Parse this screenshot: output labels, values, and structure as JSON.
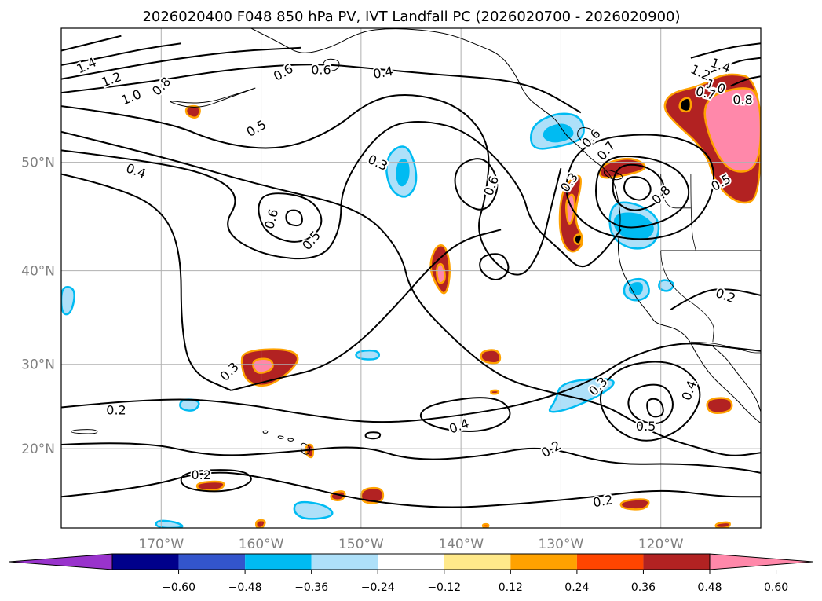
{
  "chart_data": {
    "type": "contour-map",
    "title": "2026020400 F048 850 hPa PV, IVT Landfall PC (2026020700 - 2026020900)",
    "projection": "Mercator",
    "lon_range": [
      -180,
      -110
    ],
    "lat_range": [
      10,
      60
    ],
    "lon_ticks": [
      -170,
      -160,
      -150,
      -140,
      -130,
      -120
    ],
    "lon_tick_labels": [
      "170°W",
      "160°W",
      "150°W",
      "140°W",
      "130°W",
      "120°W"
    ],
    "lat_ticks": [
      20,
      30,
      40,
      50
    ],
    "lat_tick_labels": [
      "20°N",
      "30°N",
      "40°N",
      "50°N"
    ],
    "grid": true,
    "contour_field": "850 hPa PV",
    "contour_levels": [
      0.2,
      0.3,
      0.4,
      0.5,
      0.6,
      0.7,
      0.8,
      1.0,
      1.2,
      1.4
    ],
    "contour_labels": [
      {
        "text": "1.4",
        "lon": -177.5,
        "lat": 57.5,
        "rot": -25
      },
      {
        "text": "1.2",
        "lon": -175.0,
        "lat": 56.5,
        "rot": -20
      },
      {
        "text": "1.0",
        "lon": -173.0,
        "lat": 55.2,
        "rot": -22
      },
      {
        "text": "0.8",
        "lon": -170.0,
        "lat": 56.0,
        "rot": -45
      },
      {
        "text": "0.6",
        "lon": -157.8,
        "lat": 57.0,
        "rot": -30
      },
      {
        "text": "0.6",
        "lon": -154.0,
        "lat": 57.2,
        "rot": 0
      },
      {
        "text": "0.4",
        "lon": -147.8,
        "lat": 57.0,
        "rot": -10
      },
      {
        "text": "0.5",
        "lon": -160.5,
        "lat": 52.8,
        "rot": -30
      },
      {
        "text": "0.4",
        "lon": -172.5,
        "lat": 49.3,
        "rot": 20
      },
      {
        "text": "0.3",
        "lon": -148.3,
        "lat": 50.0,
        "rot": 25
      },
      {
        "text": "0.6",
        "lon": -159.0,
        "lat": 45.0,
        "rot": -75
      },
      {
        "text": "0.5",
        "lon": -155.0,
        "lat": 43.0,
        "rot": -50
      },
      {
        "text": "0.6",
        "lon": -137.0,
        "lat": 48.0,
        "rot": -70
      },
      {
        "text": "0.6",
        "lon": -127.0,
        "lat": 52.0,
        "rot": -45
      },
      {
        "text": "0.3",
        "lon": -129.2,
        "lat": 48.3,
        "rot": -55
      },
      {
        "text": "0.7",
        "lon": -125.5,
        "lat": 51.0,
        "rot": -50
      },
      {
        "text": "0.8",
        "lon": -120.0,
        "lat": 47.2,
        "rot": -45
      },
      {
        "text": "1.4",
        "lon": -114.0,
        "lat": 57.5,
        "rot": 20
      },
      {
        "text": "1.2",
        "lon": -116.0,
        "lat": 57.0,
        "rot": 25
      },
      {
        "text": "1.0",
        "lon": -114.5,
        "lat": 56.0,
        "rot": 20
      },
      {
        "text": "0.7",
        "lon": -115.5,
        "lat": 55.5,
        "rot": 15
      },
      {
        "text": "0.8",
        "lon": -111.8,
        "lat": 55.0,
        "rot": 0
      },
      {
        "text": "0.5",
        "lon": -114.0,
        "lat": 48.3,
        "rot": -30
      },
      {
        "text": "0.2",
        "lon": -113.5,
        "lat": 37.5,
        "rot": 20
      },
      {
        "text": "0.3",
        "lon": -163.2,
        "lat": 29.2,
        "rot": -45
      },
      {
        "text": "0.2",
        "lon": -174.5,
        "lat": 24.7,
        "rot": 0
      },
      {
        "text": "0.4",
        "lon": -140.2,
        "lat": 22.8,
        "rot": -20
      },
      {
        "text": "0.3",
        "lon": -126.3,
        "lat": 27.5,
        "rot": -45
      },
      {
        "text": "0.4",
        "lon": -117.2,
        "lat": 27.0,
        "rot": -70
      },
      {
        "text": "0.5",
        "lon": -121.5,
        "lat": 22.8,
        "rot": 0
      },
      {
        "text": "0.2",
        "lon": -131.0,
        "lat": 20.0,
        "rot": -30
      },
      {
        "text": "0.2",
        "lon": -166.0,
        "lat": 16.8,
        "rot": 0
      },
      {
        "text": "0.2",
        "lon": -125.8,
        "lat": 13.5,
        "rot": -10
      }
    ],
    "filled_field": "IVT Landfall PC",
    "colorbar": {
      "extend": "both",
      "boundaries": [
        -0.72,
        -0.6,
        -0.48,
        -0.36,
        -0.24,
        -0.12,
        0.12,
        0.24,
        0.36,
        0.48,
        0.6,
        0.72
      ],
      "tick_values": [
        -0.6,
        -0.48,
        -0.36,
        -0.24,
        -0.12,
        0.12,
        0.24,
        0.36,
        0.48,
        0.6
      ],
      "tick_labels": [
        "−0.60",
        "−0.48",
        "−0.36",
        "−0.24",
        "−0.12",
        "0.12",
        "0.24",
        "0.36",
        "0.48",
        "0.60"
      ],
      "colors": [
        "#9933cc",
        "#00008b",
        "#3355cc",
        "#00bbf2",
        "#aee0f9",
        "#ffffff",
        "#ffe98a",
        "#ffa200",
        "#ff4500",
        "#b22222",
        "#ff88aa"
      ]
    },
    "filled_regions": [
      {
        "level": -0.36,
        "points": [
          [
            -147,
            51
          ],
          [
            -145.5,
            51.5
          ],
          [
            -144.6,
            50
          ],
          [
            -144.4,
            48
          ],
          [
            -145.5,
            46.8
          ],
          [
            -147,
            47.5
          ],
          [
            -147.6,
            49.5
          ]
        ]
      },
      {
        "level": -0.48,
        "points": [
          [
            -146.2,
            50.2
          ],
          [
            -145.3,
            50.2
          ],
          [
            -145.2,
            48.6
          ],
          [
            -146,
            47.8
          ],
          [
            -146.5,
            48.8
          ]
        ]
      },
      {
        "level": -0.36,
        "points": [
          [
            -133,
            53
          ],
          [
            -130.5,
            54
          ],
          [
            -128,
            53.8
          ],
          [
            -127.5,
            52
          ],
          [
            -130,
            51.3
          ],
          [
            -133,
            51
          ]
        ]
      },
      {
        "level": -0.48,
        "points": [
          [
            -131.5,
            52.8
          ],
          [
            -129.5,
            53.2
          ],
          [
            -128.5,
            52.2
          ],
          [
            -130.5,
            51.6
          ],
          [
            -131.8,
            52
          ]
        ]
      },
      {
        "level": -0.36,
        "points": [
          [
            -125,
            46.5
          ],
          [
            -122.5,
            46.5
          ],
          [
            -120,
            45
          ],
          [
            -120.5,
            42.5
          ],
          [
            -123,
            42
          ],
          [
            -125.2,
            43.5
          ]
        ]
      },
      {
        "level": -0.48,
        "points": [
          [
            -124.5,
            45.5
          ],
          [
            -122,
            45.5
          ],
          [
            -120.5,
            44.2
          ],
          [
            -121.5,
            43
          ],
          [
            -123.5,
            43.2
          ],
          [
            -124.7,
            44.2
          ]
        ]
      },
      {
        "level": -0.36,
        "points": [
          [
            -123.5,
            39
          ],
          [
            -121.5,
            39.3
          ],
          [
            -121,
            37.5
          ],
          [
            -122.5,
            36.8
          ],
          [
            -123.8,
            37.5
          ]
        ]
      },
      {
        "level": -0.48,
        "points": [
          [
            -123,
            38.7
          ],
          [
            -121.8,
            38.8
          ],
          [
            -122,
            37.5
          ],
          [
            -123.2,
            37.8
          ]
        ]
      },
      {
        "level": -0.36,
        "points": [
          [
            -120,
            39.2
          ],
          [
            -118.5,
            38.8
          ],
          [
            -119.2,
            37.8
          ],
          [
            -120.3,
            38.2
          ]
        ]
      },
      {
        "level": -0.36,
        "points": [
          [
            -150.5,
            31.5
          ],
          [
            -148.2,
            31.6
          ],
          [
            -148.2,
            30.5
          ],
          [
            -150.5,
            30.6
          ]
        ]
      },
      {
        "level": -0.36,
        "points": [
          [
            -130,
            28
          ],
          [
            -125,
            28.5
          ],
          [
            -124.5,
            27.5
          ],
          [
            -128.5,
            25
          ],
          [
            -131.5,
            24.2
          ],
          [
            -130.5,
            25.8
          ]
        ]
      },
      {
        "level": -0.36,
        "points": [
          [
            -168,
            26
          ],
          [
            -166,
            25.8
          ],
          [
            -166.6,
            24.5
          ],
          [
            -168.2,
            24.8
          ]
        ]
      },
      {
        "level": -0.36,
        "points": [
          [
            -180,
            38.5
          ],
          [
            -178.5,
            38.2
          ],
          [
            -179,
            35.5
          ],
          [
            -180,
            35.5
          ]
        ]
      },
      {
        "level": -0.36,
        "points": [
          [
            -156.5,
            13.5
          ],
          [
            -153.5,
            13
          ],
          [
            -152.5,
            11.5
          ],
          [
            -155.5,
            11
          ],
          [
            -156.8,
            12
          ]
        ]
      },
      {
        "level": -0.36,
        "points": [
          [
            -170.5,
            11
          ],
          [
            -168.5,
            10.8
          ],
          [
            -167.5,
            10
          ],
          [
            -170.5,
            10
          ]
        ]
      },
      {
        "level": 0.36,
        "points": [
          [
            -161.8,
            31.5
          ],
          [
            -157.5,
            31.8
          ],
          [
            -156,
            30.8
          ],
          [
            -157.2,
            29
          ],
          [
            -159.5,
            27.3
          ],
          [
            -161.5,
            28
          ],
          [
            -162,
            30
          ]
        ]
      },
      {
        "level": 0.48,
        "points": [
          [
            -161,
            30.5
          ],
          [
            -159,
            30.7
          ],
          [
            -158.7,
            29.4
          ],
          [
            -160.5,
            28.8
          ]
        ]
      },
      {
        "level": 0.36,
        "points": [
          [
            -142.5,
            42.5
          ],
          [
            -141.5,
            42.5
          ],
          [
            -141,
            40
          ],
          [
            -141.5,
            37.3
          ],
          [
            -142.5,
            38.5
          ],
          [
            -143.2,
            40.5
          ]
        ]
      },
      {
        "level": 0.48,
        "points": [
          [
            -142.5,
            40.5
          ],
          [
            -141.8,
            40.8
          ],
          [
            -141.5,
            39
          ],
          [
            -142.3,
            38.6
          ]
        ]
      },
      {
        "level": 0.36,
        "points": [
          [
            -130,
            47.5
          ],
          [
            -128.5,
            49
          ],
          [
            -127.8,
            48.6
          ],
          [
            -128.8,
            45
          ],
          [
            -127.5,
            42.8
          ],
          [
            -129,
            41.5
          ],
          [
            -130.2,
            43.5
          ]
        ]
      },
      {
        "level": 0.48,
        "points": [
          [
            -129.6,
            46.5
          ],
          [
            -128.8,
            47.5
          ],
          [
            -128.5,
            46
          ],
          [
            -129.2,
            44
          ]
        ]
      },
      {
        "level": 0.6,
        "points": [
          [
            -128.6,
            43.5
          ],
          [
            -127.8,
            43.6
          ],
          [
            -128.1,
            42.5
          ],
          [
            -128.7,
            42.8
          ]
        ]
      },
      {
        "level": 0.36,
        "points": [
          [
            -126,
            49.8
          ],
          [
            -123,
            50.5
          ],
          [
            -121,
            49.5
          ],
          [
            -124,
            48.8
          ],
          [
            -126.2,
            48.6
          ]
        ]
      },
      {
        "level": 0.36,
        "points": [
          [
            -119,
            55.5
          ],
          [
            -116,
            56
          ],
          [
            -113.5,
            57
          ],
          [
            -110,
            56.5
          ],
          [
            -110,
            47
          ],
          [
            -112,
            46.2
          ],
          [
            -114.5,
            48
          ],
          [
            -115.5,
            51
          ],
          [
            -119,
            53.5
          ],
          [
            -119.8,
            54.5
          ]
        ]
      },
      {
        "level": 0.48,
        "points": [
          [
            -116,
            55
          ],
          [
            -112,
            56
          ],
          [
            -110,
            55.5
          ],
          [
            -110,
            49.5
          ],
          [
            -113,
            49
          ],
          [
            -115,
            51.5
          ]
        ]
      },
      {
        "level": 0.6,
        "points": [
          [
            -118,
            55
          ],
          [
            -117,
            55.2
          ],
          [
            -117,
            54
          ],
          [
            -118.2,
            54.2
          ]
        ]
      },
      {
        "level": 0.36,
        "points": [
          [
            -138,
            31.5
          ],
          [
            -136.2,
            31.7
          ],
          [
            -136,
            30
          ],
          [
            -138,
            30.3
          ]
        ]
      },
      {
        "level": 0.36,
        "points": [
          [
            -115.5,
            26
          ],
          [
            -113,
            26.2
          ],
          [
            -112.8,
            24.5
          ],
          [
            -115.2,
            24.2
          ]
        ]
      },
      {
        "level": 0.36,
        "points": [
          [
            -150,
            15
          ],
          [
            -147.8,
            15.2
          ],
          [
            -147.8,
            13.2
          ],
          [
            -150,
            13.2
          ]
        ]
      },
      {
        "level": 0.36,
        "points": [
          [
            -153,
            14.5
          ],
          [
            -151.5,
            14.8
          ],
          [
            -151.8,
            13.5
          ],
          [
            -153,
            13.6
          ]
        ]
      },
      {
        "level": 0.36,
        "points": [
          [
            -166.5,
            15.8
          ],
          [
            -163.5,
            16
          ],
          [
            -164,
            14.8
          ],
          [
            -166.3,
            14.8
          ]
        ]
      },
      {
        "level": 0.36,
        "points": [
          [
            -124,
            13.5
          ],
          [
            -121,
            13.8
          ],
          [
            -121.5,
            12.3
          ],
          [
            -124,
            12.5
          ]
        ]
      },
      {
        "level": 0.36,
        "points": [
          [
            -167.5,
            54.5
          ],
          [
            -166,
            54.5
          ],
          [
            -166.3,
            53.5
          ],
          [
            -167.5,
            53.8
          ]
        ]
      },
      {
        "level": 0.36,
        "points": [
          [
            -160.5,
            11
          ],
          [
            -159.5,
            11
          ],
          [
            -159.8,
            10
          ],
          [
            -160.5,
            10
          ]
        ]
      },
      {
        "level": 0.36,
        "points": [
          [
            -114.5,
            10.6
          ],
          [
            -113,
            10.8
          ],
          [
            -113.2,
            10
          ],
          [
            -114.5,
            10
          ]
        ]
      },
      {
        "level": 0.24,
        "points": [
          [
            -137.8,
            10.5
          ],
          [
            -137.2,
            10.5
          ],
          [
            -137.3,
            10
          ],
          [
            -137.8,
            10.1
          ]
        ]
      },
      {
        "level": 0.36,
        "points": [
          [
            -137,
            27
          ],
          [
            -136.2,
            27
          ],
          [
            -136.3,
            26.6
          ],
          [
            -137,
            26.6
          ]
        ]
      },
      {
        "level": 0.36,
        "points": [
          [
            -155.5,
            20.5
          ],
          [
            -154.8,
            20.5
          ],
          [
            -154.8,
            18.8
          ],
          [
            -155.5,
            19.2
          ]
        ]
      }
    ]
  }
}
